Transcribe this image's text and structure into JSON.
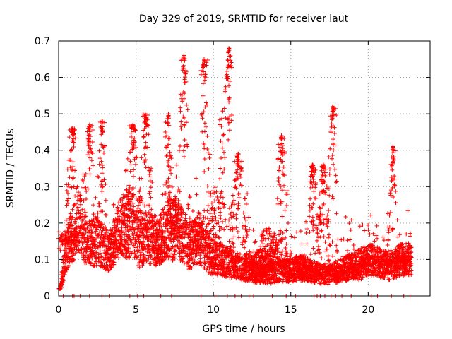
{
  "chart_data": {
    "type": "scatter",
    "title": "Day 329 of 2019, SRMTID for receiver laut",
    "xlabel": "GPS time / hours",
    "ylabel": "SRMTID / TECUs",
    "xlim": [
      0,
      24
    ],
    "ylim": [
      0,
      0.7
    ],
    "x_ticks": [
      "0",
      "5",
      "10",
      "15",
      "20"
    ],
    "y_ticks": [
      "0",
      "0.1",
      "0.2",
      "0.3",
      "0.4",
      "0.5",
      "0.6",
      "0.7"
    ],
    "x_tick_values": [
      0,
      5,
      10,
      15,
      20
    ],
    "y_tick_values": [
      0,
      0.1,
      0.2,
      0.3,
      0.4,
      0.5,
      0.6,
      0.7
    ],
    "grid": true,
    "marker": "+",
    "color": "#ff0000",
    "x_end": 22.8,
    "baseline": [
      0,
      0.15,
      0.2,
      0.14,
      0.15,
      0.12,
      0.18,
      0.21,
      0.14,
      0.16,
      0.15,
      0.19,
      0.18,
      0.13,
      0.16,
      0.11,
      0.1,
      0.09,
      0.08,
      0.07,
      0.06,
      0.06,
      0.07,
      0.07,
      0.08,
      0.07,
      0.06,
      0.06,
      0.07,
      0.08,
      0.09,
      0.1,
      0.09,
      0.08,
      0.1,
      0.1
    ],
    "baseline_step_hours": 0.65,
    "tracks": [
      {
        "start": 0.0,
        "end": 1.3,
        "base": 0.15,
        "amp": 0.05
      },
      {
        "start": 0.5,
        "end": 1.1,
        "base": 0.25,
        "amp": 0.2,
        "peak": 0.46,
        "peak_at": 0.9
      },
      {
        "start": 1.6,
        "end": 2.3,
        "base": 0.22,
        "amp": 0.2,
        "peak": 0.47,
        "peak_at": 2.0
      },
      {
        "start": 2.5,
        "end": 3.1,
        "base": 0.2,
        "amp": 0.25,
        "peak": 0.48,
        "peak_at": 2.8
      },
      {
        "start": 3.2,
        "end": 4.6,
        "base": 0.14,
        "amp": 0.08
      },
      {
        "start": 4.4,
        "end": 5.6,
        "base": 0.22,
        "amp": 0.12,
        "peak": 0.47,
        "peak_at": 4.8
      },
      {
        "start": 5.2,
        "end": 6.0,
        "base": 0.3,
        "amp": 0.15,
        "peak": 0.5,
        "peak_at": 5.6
      },
      {
        "start": 6.0,
        "end": 7.4,
        "base": 0.13,
        "amp": 0.08,
        "peak": 0.5,
        "peak_at": 7.1
      },
      {
        "start": 7.0,
        "end": 8.0,
        "base": 0.2,
        "amp": 0.1
      },
      {
        "start": 7.8,
        "end": 8.4,
        "base": 0.3,
        "amp": 0.3,
        "peak": 0.66,
        "peak_at": 8.1
      },
      {
        "start": 8.4,
        "end": 9.2,
        "base": 0.15,
        "amp": 0.1
      },
      {
        "start": 9.2,
        "end": 9.8,
        "base": 0.25,
        "amp": 0.3,
        "peak": 0.65,
        "peak_at": 9.4
      },
      {
        "start": 9.6,
        "end": 10.6,
        "base": 0.2,
        "amp": 0.18
      },
      {
        "start": 10.4,
        "end": 11.2,
        "base": 0.35,
        "amp": 0.3,
        "peak": 0.68,
        "peak_at": 11.0
      },
      {
        "start": 11.0,
        "end": 12.2,
        "base": 0.2,
        "amp": 0.15,
        "peak": 0.39,
        "peak_at": 11.6
      },
      {
        "start": 12.0,
        "end": 14.0,
        "base": 0.1,
        "amp": 0.05
      },
      {
        "start": 13.0,
        "end": 14.5,
        "base": 0.13,
        "amp": 0.1
      },
      {
        "start": 14.1,
        "end": 14.8,
        "base": 0.2,
        "amp": 0.2,
        "peak": 0.44,
        "peak_at": 14.4
      },
      {
        "start": 14.6,
        "end": 16.0,
        "base": 0.08,
        "amp": 0.06
      },
      {
        "start": 15.5,
        "end": 17.0,
        "base": 0.06,
        "amp": 0.04
      },
      {
        "start": 16.2,
        "end": 17.0,
        "base": 0.15,
        "amp": 0.15,
        "peak": 0.36,
        "peak_at": 16.4
      },
      {
        "start": 16.8,
        "end": 17.5,
        "base": 0.12,
        "amp": 0.2,
        "peak": 0.36,
        "peak_at": 17.1
      },
      {
        "start": 17.4,
        "end": 18.0,
        "base": 0.2,
        "amp": 0.25,
        "peak": 0.52,
        "peak_at": 17.7
      },
      {
        "start": 17.8,
        "end": 19.6,
        "base": 0.06,
        "amp": 0.04
      },
      {
        "start": 19.5,
        "end": 21.3,
        "base": 0.08,
        "amp": 0.05
      },
      {
        "start": 21.2,
        "end": 21.8,
        "base": 0.12,
        "amp": 0.2,
        "peak": 0.41,
        "peak_at": 21.6
      },
      {
        "start": 21.7,
        "end": 22.8,
        "base": 0.09,
        "amp": 0.04
      }
    ],
    "zero_points_x": [
      0.3,
      0.9,
      1.0,
      1.4,
      2.0,
      2.8,
      3.3,
      4.6,
      5.1,
      5.5,
      6.6,
      7.3,
      9.2,
      10.1,
      10.9,
      11.4,
      11.8,
      12.3,
      12.6,
      13.8,
      14.7,
      15.3,
      16.5,
      16.7,
      16.9,
      17.2,
      17.6,
      17.9,
      18.3,
      18.9,
      20.2,
      20.6,
      21.5,
      22.3,
      22.7
    ]
  }
}
